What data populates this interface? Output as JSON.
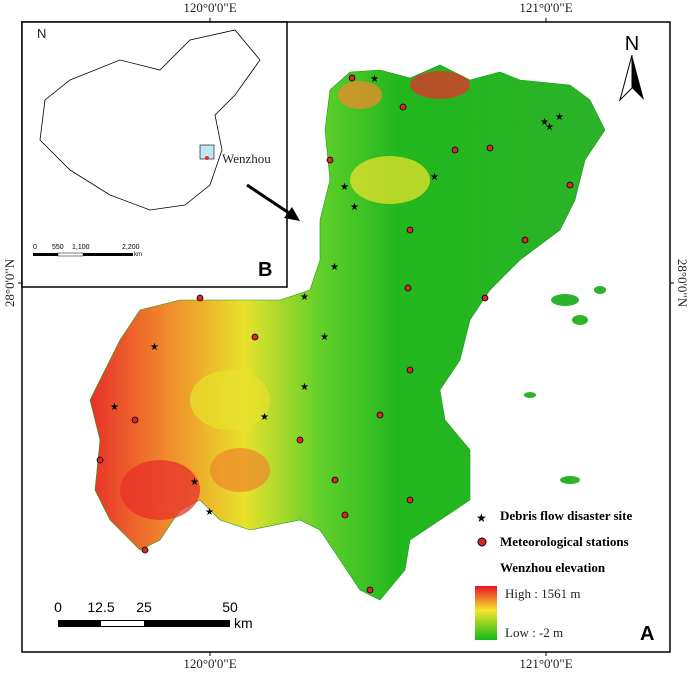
{
  "graticule": {
    "top": [
      "120°0'0\"E",
      "121°0'0\"E"
    ],
    "bottom": [
      "120°0'0\"E",
      "121°0'0\"E"
    ],
    "left": "28°0'0\"N",
    "right": "28°0'0\"N"
  },
  "north_arrow": "N",
  "inset": {
    "north": "N",
    "label": "Wenzhou",
    "scale": [
      "0",
      "550",
      "1,100",
      "2,200"
    ],
    "unit": "km",
    "panel": "B"
  },
  "legend": {
    "items": [
      "Debris flow disaster site",
      "Meteorological stations"
    ],
    "elevation_title": "Wenzhou elevation",
    "high": "High : 1561 m",
    "low": "Low : -2 m"
  },
  "scale_bar": {
    "ticks": [
      "0",
      "12.5",
      "25",
      "50"
    ],
    "unit": "km"
  },
  "panel": "A"
}
